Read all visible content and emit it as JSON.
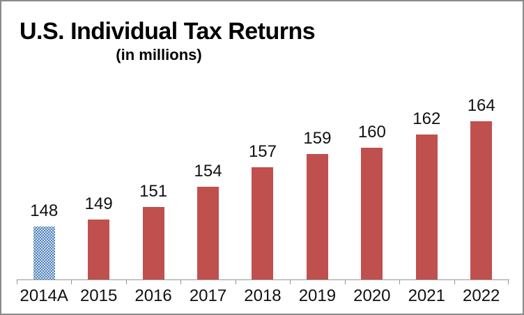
{
  "header": {
    "title": "U.S. Individual Tax Returns",
    "subtitle": "(in millions)"
  },
  "chart_data": {
    "type": "bar",
    "title": "U.S. Individual Tax Returns",
    "subtitle": "(in millions)",
    "categories": [
      "2014A",
      "2015",
      "2016",
      "2017",
      "2018",
      "2019",
      "2020",
      "2021",
      "2022"
    ],
    "values": [
      148,
      149,
      151,
      154,
      157,
      159,
      160,
      162,
      164
    ],
    "data_labels": [
      148,
      149,
      151,
      154,
      157,
      159,
      160,
      162,
      164
    ],
    "xlabel": "",
    "ylabel": "",
    "ylim": [
      140,
      169
    ],
    "grid": false,
    "legend": false,
    "y_axis_visible": false,
    "styles": {
      "default_fill": "#C0504D",
      "highlight_index": 0,
      "highlight_fill": "#4F81BD",
      "highlight_pattern": "white-dot-grid"
    }
  },
  "colors": {
    "bar_solid": "#C0504D",
    "bar_pattern_bg": "#4F81BD",
    "bar_pattern_dot": "#FFFFFF",
    "axis": "#969696",
    "border": "#8A8A8A",
    "label_text": "#111111"
  }
}
